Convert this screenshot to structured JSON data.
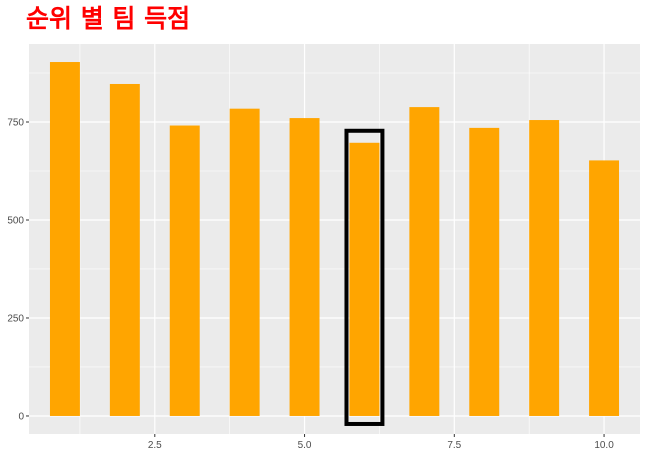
{
  "chart_data": {
    "type": "bar",
    "title": "순위 별 팀 득점",
    "xlabel": "",
    "ylabel": "",
    "x": [
      1,
      2,
      3,
      4,
      5,
      6,
      7,
      8,
      9,
      10
    ],
    "values": [
      903,
      847,
      741,
      784,
      760,
      697,
      788,
      735,
      755,
      652
    ],
    "xlim": [
      0.4,
      10.6
    ],
    "ylim": [
      -46,
      949
    ],
    "x_ticks": [
      2.5,
      5.0,
      7.5,
      10.0
    ],
    "x_tick_labels": [
      "2.5",
      "5.0",
      "7.5",
      "10.0"
    ],
    "y_ticks": [
      0,
      250,
      500,
      750
    ],
    "y_tick_labels": [
      "0",
      "250",
      "500",
      "750"
    ],
    "grid": true,
    "legend": "none",
    "highlighted_x": 6,
    "colors": {
      "bar": "#FFA500",
      "title": "#FF0000",
      "panel": "#EBEBEB",
      "grid": "#FFFFFF",
      "highlight_box": "#000000"
    }
  }
}
